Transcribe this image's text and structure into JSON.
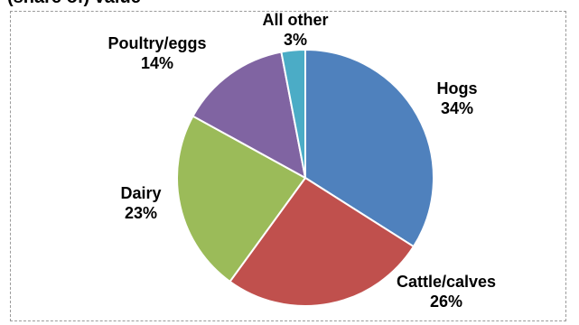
{
  "clipped_header": "(share of) value",
  "chart_data": {
    "type": "pie",
    "start": "12 o'clock",
    "direction": "clockwise",
    "slices": [
      {
        "label": "Hogs",
        "value": 34,
        "value_label": "34%",
        "color": "#4F81BD"
      },
      {
        "label": "Cattle/calves",
        "value": 26,
        "value_label": "26%",
        "color": "#C0504D"
      },
      {
        "label": "Dairy",
        "value": 23,
        "value_label": "23%",
        "color": "#9BBB59"
      },
      {
        "label": "Poultry/eggs",
        "value": 14,
        "value_label": "14%",
        "color": "#8064A2"
      },
      {
        "label": "All other",
        "value": 3,
        "value_label": "3%",
        "color": "#4BACC6"
      }
    ]
  }
}
